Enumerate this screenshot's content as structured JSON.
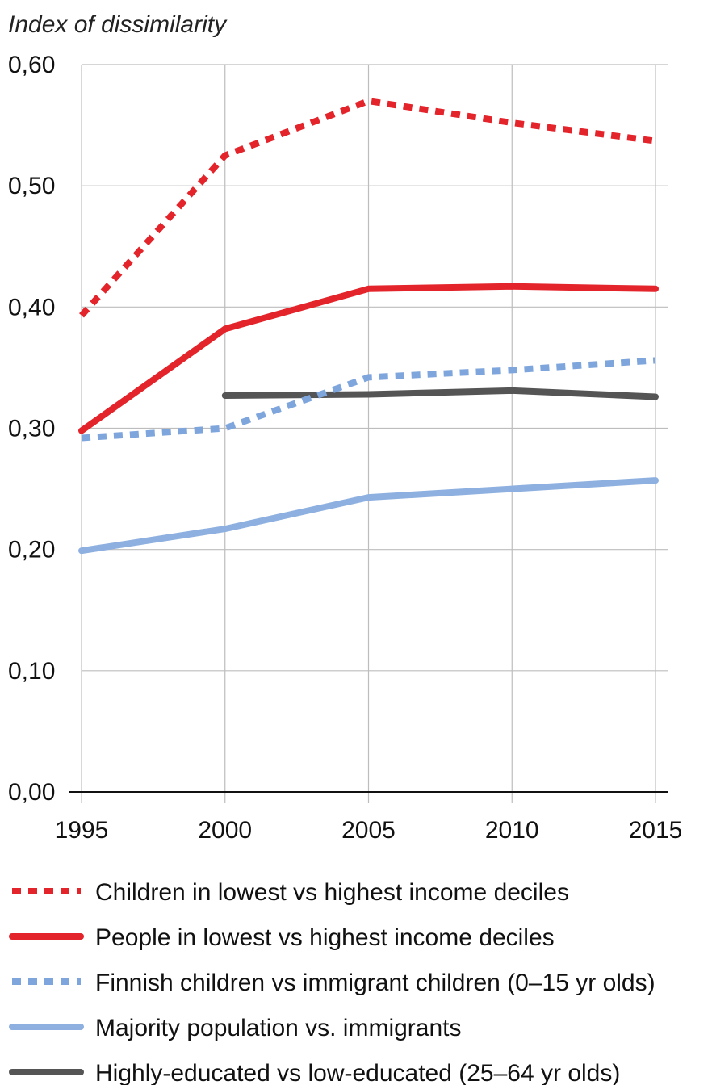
{
  "chart_data": {
    "type": "line",
    "ylabel": "Index of dissimilarity",
    "xlabel": "",
    "x": [
      1995,
      2000,
      2005,
      2010,
      2015
    ],
    "x_tick_labels": [
      "1995",
      "2000",
      "2005",
      "2010",
      "2015"
    ],
    "y_tick_labels": [
      "0,00",
      "0,10",
      "0,20",
      "0,30",
      "0,40",
      "0,50",
      "0,60"
    ],
    "ylim": [
      0,
      0.6
    ],
    "grid": "vertical and horizontal gridlines",
    "legend_position": "bottom",
    "series": [
      {
        "name": "Children in lowest vs highest income deciles",
        "color": "#e3242b",
        "style": "dotted",
        "values": [
          0.393,
          0.525,
          0.57,
          0.552,
          0.537
        ]
      },
      {
        "name": "People in lowest vs highest income deciles",
        "color": "#e3242b",
        "style": "solid",
        "values": [
          0.298,
          0.382,
          0.415,
          0.417,
          0.415
        ]
      },
      {
        "name": "Finnish children vs immigrant children (0–15 yr olds)",
        "color": "#7fa6dc",
        "style": "dotted",
        "values": [
          0.292,
          0.3,
          0.342,
          0.348,
          0.356
        ]
      },
      {
        "name": "Majority population vs. immigrants",
        "color": "#8db0e0",
        "style": "solid",
        "values": [
          0.199,
          0.217,
          0.243,
          0.25,
          0.257
        ]
      },
      {
        "name": "Highly-educated vs low-educated (25–64 yr olds)",
        "color": "#555555",
        "style": "solid",
        "values": [
          null,
          0.327,
          0.328,
          0.331,
          0.326
        ]
      }
    ]
  }
}
